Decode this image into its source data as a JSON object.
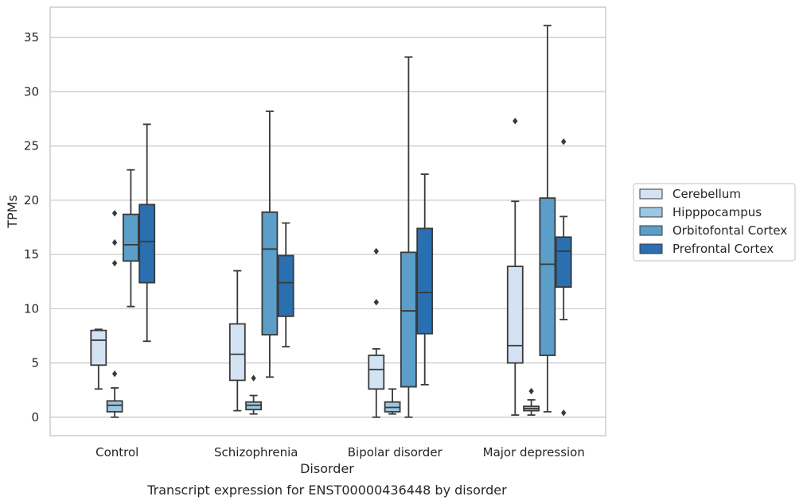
{
  "chart_data": {
    "type": "box",
    "xlabel": "Disorder",
    "ylabel": "TPMs",
    "caption": "Transcript expression for ENST00000436448 by disorder",
    "ylim": [
      -1.7,
      37.8
    ],
    "yticks": [
      0,
      5,
      10,
      15,
      20,
      25,
      30,
      35
    ],
    "grid": "horizontal",
    "legend_position": "right",
    "categories": [
      "Control",
      "Schizophrenia",
      "Bipolar disorder",
      "Major depression"
    ],
    "series": [
      {
        "name": "Cerebellum",
        "color": "#d3e3f3",
        "boxes": [
          {
            "whislo": 2.6,
            "q1": 4.8,
            "med": 7.1,
            "q3": 8.0,
            "whishi": 8.1,
            "fliers": []
          },
          {
            "whislo": 0.6,
            "q1": 3.4,
            "med": 5.8,
            "q3": 8.6,
            "whishi": 13.5,
            "fliers": []
          },
          {
            "whislo": 0.0,
            "q1": 2.6,
            "med": 4.4,
            "q3": 5.7,
            "whishi": 6.3,
            "fliers": [
              15.3,
              10.6
            ]
          },
          {
            "whislo": 0.2,
            "q1": 5.0,
            "med": 6.6,
            "q3": 13.9,
            "whishi": 19.9,
            "fliers": [
              27.3
            ]
          }
        ]
      },
      {
        "name": "Hipppocampus",
        "color": "#9ac8e0",
        "boxes": [
          {
            "whislo": 0.0,
            "q1": 0.5,
            "med": 1.1,
            "q3": 1.5,
            "whishi": 2.7,
            "fliers": [
              18.8,
              16.1,
              14.2,
              4.0
            ]
          },
          {
            "whislo": 0.3,
            "q1": 0.7,
            "med": 1.1,
            "q3": 1.4,
            "whishi": 2.0,
            "fliers": [
              3.6
            ]
          },
          {
            "whislo": 0.3,
            "q1": 0.5,
            "med": 0.9,
            "q3": 1.4,
            "whishi": 2.6,
            "fliers": []
          },
          {
            "whislo": 0.2,
            "q1": 0.6,
            "med": 0.8,
            "q3": 1.0,
            "whishi": 1.6,
            "fliers": [
              2.4
            ]
          }
        ]
      },
      {
        "name": "Orbitofontal Cortex",
        "color": "#5a9ec9",
        "boxes": [
          {
            "whislo": 10.2,
            "q1": 14.4,
            "med": 15.9,
            "q3": 18.7,
            "whishi": 22.8,
            "fliers": []
          },
          {
            "whislo": 3.7,
            "q1": 7.6,
            "med": 15.5,
            "q3": 18.9,
            "whishi": 28.2,
            "fliers": []
          },
          {
            "whislo": 0.0,
            "q1": 2.8,
            "med": 9.8,
            "q3": 15.2,
            "whishi": 33.2,
            "fliers": []
          },
          {
            "whislo": 0.5,
            "q1": 5.7,
            "med": 14.1,
            "q3": 20.2,
            "whishi": 36.1,
            "fliers": []
          }
        ]
      },
      {
        "name": "Prefrontal Cortex",
        "color": "#2a6fb0",
        "boxes": [
          {
            "whislo": 7.0,
            "q1": 12.4,
            "med": 16.2,
            "q3": 19.6,
            "whishi": 27.0,
            "fliers": []
          },
          {
            "whislo": 6.5,
            "q1": 9.3,
            "med": 12.4,
            "q3": 14.9,
            "whishi": 17.9,
            "fliers": []
          },
          {
            "whislo": 3.0,
            "q1": 7.7,
            "med": 11.5,
            "q3": 17.4,
            "whishi": 22.4,
            "fliers": []
          },
          {
            "whislo": 9.0,
            "q1": 12.0,
            "med": 15.3,
            "q3": 16.6,
            "whishi": 18.5,
            "fliers": [
              25.4,
              0.4
            ]
          }
        ]
      }
    ]
  }
}
